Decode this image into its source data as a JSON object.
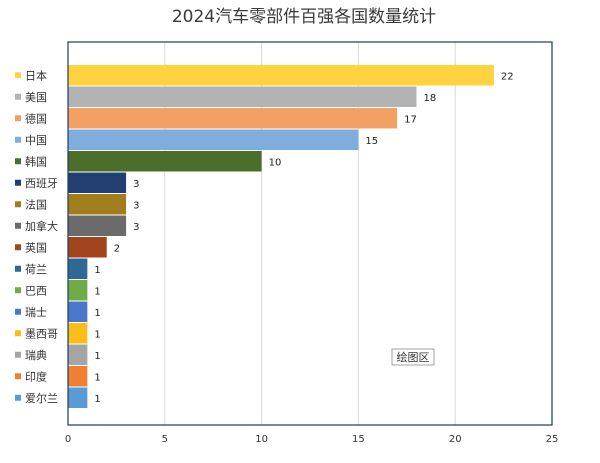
{
  "chart_data": {
    "type": "bar",
    "orientation": "horizontal",
    "title": "2024汽车零部件百强各国数量统计",
    "xlabel": "",
    "ylabel": "",
    "xlim": [
      0,
      25
    ],
    "x_ticks": [
      0,
      5,
      10,
      15,
      20,
      25
    ],
    "grid": true,
    "legend": "left",
    "plot_area_label": "绘图区",
    "categories": [
      "日本",
      "美国",
      "德国",
      "中国",
      "韩国",
      "西班牙",
      "法国",
      "加拿大",
      "英国",
      "荷兰",
      "巴西",
      "瑞士",
      "墨西哥",
      "瑞典",
      "印度",
      "爱尔兰"
    ],
    "values": [
      22,
      18,
      17,
      15,
      10,
      3,
      3,
      3,
      2,
      1,
      1,
      1,
      1,
      1,
      1,
      1
    ],
    "colors": [
      "#FFD23F",
      "#B3B3B3",
      "#F4A062",
      "#7FAEDE",
      "#4B6E2B",
      "#233F72",
      "#A07E1B",
      "#6B6B6B",
      "#A2451E",
      "#2F6894",
      "#6EAB49",
      "#4A78C8",
      "#FCBD1A",
      "#A5A5A5",
      "#EE7F33",
      "#5B9BD5"
    ]
  }
}
